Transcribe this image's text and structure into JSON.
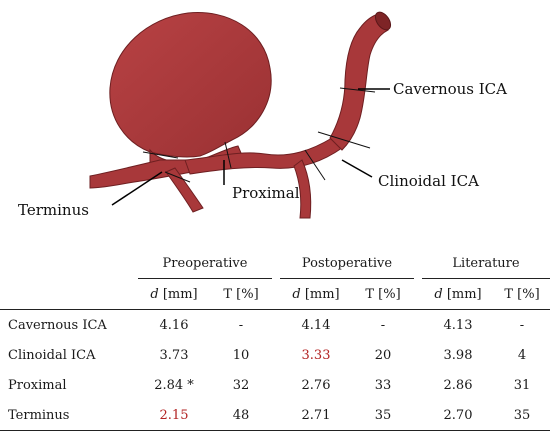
{
  "figure": {
    "labels": {
      "cavernous": "Cavernous ICA",
      "clinoidal": "Clinoidal ICA",
      "proximal": "Proximal",
      "terminus": "Terminus"
    },
    "vessel_color": "#a8383a",
    "highlight_color": "#b22222"
  },
  "table": {
    "groups": [
      "Preoperative",
      "Postoperative",
      "Literature"
    ],
    "subheaders": [
      {
        "var": "d",
        "unit": " [mm]"
      },
      {
        "var": "",
        "unit": "T [%]"
      },
      {
        "var": "d",
        "unit": " [mm]"
      },
      {
        "var": "",
        "unit": "T [%]"
      },
      {
        "var": "d",
        "unit": " [mm]"
      },
      {
        "var": "",
        "unit": "T [%]"
      }
    ],
    "rows": [
      {
        "label": "Cavernous ICA",
        "pre_d": "4.16",
        "pre_t": "-",
        "post_d": "4.14",
        "post_t": "-",
        "lit_d": "4.13",
        "lit_t": "-"
      },
      {
        "label": "Clinoidal ICA",
        "pre_d": "3.73",
        "pre_t": "10",
        "post_d": "3.33",
        "post_t": "20",
        "lit_d": "3.98",
        "lit_t": "4"
      },
      {
        "label": "Proximal",
        "pre_d": "2.84 *",
        "pre_t": "32",
        "post_d": "2.76",
        "post_t": "33",
        "lit_d": "2.86",
        "lit_t": "31"
      },
      {
        "label": "Terminus",
        "pre_d": "2.15",
        "pre_t": "48",
        "post_d": "2.71",
        "post_t": "35",
        "lit_d": "2.70",
        "lit_t": "35"
      }
    ],
    "highlighted": [
      "rows.1.post_d",
      "rows.3.pre_d"
    ]
  }
}
